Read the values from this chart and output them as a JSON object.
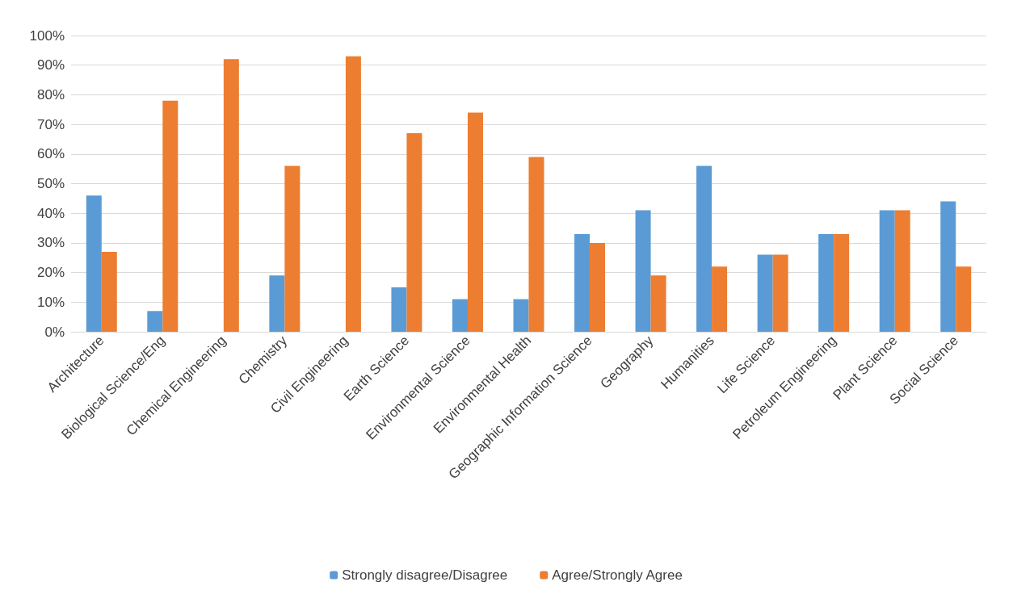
{
  "chart_data": {
    "type": "bar",
    "categories": [
      "Architecture",
      "Biological Science/Eng",
      "Chemical Engineering",
      "Chemistry",
      "Civil Engineering",
      "Earth Science",
      "Environmental Science",
      "Environmental Health",
      "Geographic Information Science",
      "Geography",
      "Humanities",
      "Life Science",
      "Petroleum Engineering",
      "Plant Science",
      "Social Science"
    ],
    "series": [
      {
        "name": "Strongly disagree/Disagree",
        "color": "#5b9bd5",
        "values": [
          46,
          7,
          0,
          19,
          0,
          15,
          11,
          11,
          33,
          41,
          56,
          26,
          33,
          41,
          44
        ]
      },
      {
        "name": "Agree/Strongly Agree",
        "color": "#ed7d31",
        "values": [
          27,
          78,
          92,
          56,
          93,
          67,
          74,
          59,
          30,
          19,
          22,
          26,
          33,
          41,
          22
        ]
      }
    ],
    "ylim": [
      0,
      100
    ],
    "yticks": [
      {
        "value": 0,
        "label": "0%"
      },
      {
        "value": 10,
        "label": "10%"
      },
      {
        "value": 20,
        "label": "20%"
      },
      {
        "value": 30,
        "label": "30%"
      },
      {
        "value": 40,
        "label": "40%"
      },
      {
        "value": 50,
        "label": "50%"
      },
      {
        "value": 60,
        "label": "60%"
      },
      {
        "value": 70,
        "label": "70%"
      },
      {
        "value": 80,
        "label": "80%"
      },
      {
        "value": 90,
        "label": "90%"
      },
      {
        "value": 100,
        "label": "100%"
      }
    ],
    "grid": "y",
    "legend": "bottom"
  }
}
